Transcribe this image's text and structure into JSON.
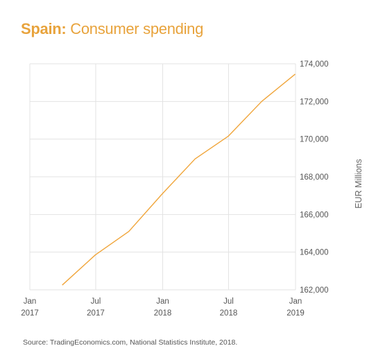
{
  "title": {
    "country": "Spain:",
    "text": "Consumer spending"
  },
  "source": "Source: TradingEconomics.com, National Statistics Institute, 2018.",
  "colors": {
    "accent": "#e8a33c",
    "line": "#f0a53a",
    "grid": "#e3e3e3"
  },
  "chart_data": {
    "type": "line",
    "title": "Spain: Consumer spending",
    "xlabel": "",
    "ylabel": "EUR Millions",
    "y_axis_position": "right",
    "grid": true,
    "x_ticks": [
      {
        "line1": "Jan",
        "line2": "2017",
        "date": "2017-01-01"
      },
      {
        "line1": "Jul",
        "line2": "2017",
        "date": "2017-07-01"
      },
      {
        "line1": "Jan",
        "line2": "2018",
        "date": "2018-01-01"
      },
      {
        "line1": "Jul",
        "line2": "2018",
        "date": "2018-07-01"
      },
      {
        "line1": "Jan",
        "line2": "2019",
        "date": "2019-01-01"
      }
    ],
    "xlim": [
      "2017-01-01",
      "2019-01-01"
    ],
    "ylim": [
      162000,
      174000
    ],
    "y_ticks": [
      162000,
      164000,
      166000,
      168000,
      170000,
      172000,
      174000
    ],
    "y_tick_labels": [
      "162,000",
      "164,000",
      "166,000",
      "168,000",
      "170,000",
      "172,000",
      "174,000"
    ],
    "series": [
      {
        "x": [
          "2017-03-31",
          "2017-06-30",
          "2017-09-30",
          "2017-12-31",
          "2018-03-31",
          "2018-06-30",
          "2018-09-30",
          "2018-12-31"
        ],
        "y": [
          162250,
          163850,
          165100,
          167100,
          168950,
          170150,
          172000,
          173450
        ]
      }
    ]
  }
}
